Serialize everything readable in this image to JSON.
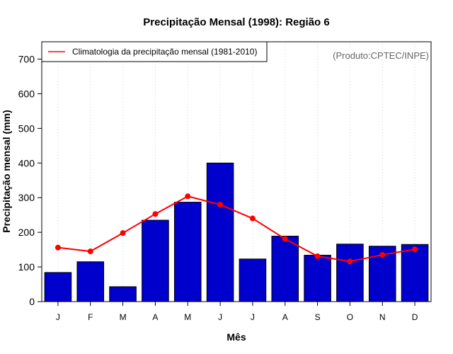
{
  "chart_data": {
    "type": "bar",
    "title": "Precipitação Mensal (1998): Região 6",
    "xlabel": "Mês",
    "ylabel": "Precipitação mensal (mm)",
    "ylim": [
      0,
      750
    ],
    "yticks": [
      0,
      100,
      200,
      300,
      400,
      500,
      600,
      700
    ],
    "categories": [
      "J",
      "F",
      "M",
      "A",
      "M",
      "J",
      "J",
      "A",
      "S",
      "O",
      "N",
      "D"
    ],
    "series": [
      {
        "name": "Precipitação mensal (1998)",
        "kind": "bar",
        "color": "#0000CD",
        "values": [
          84,
          115,
          43,
          235,
          287,
          400,
          123,
          189,
          134,
          166,
          160,
          165
        ]
      },
      {
        "name": "Climatologia da precipitação mensal (1981-2010)",
        "kind": "line",
        "color": "#FF0000",
        "values": [
          156,
          145,
          198,
          253,
          304,
          280,
          240,
          181,
          131,
          116,
          135,
          151
        ]
      }
    ],
    "grid": "vertical dotted",
    "legend": {
      "position": "top-left",
      "label": "Climatologia da precipitação mensal (1981-2010)"
    },
    "annotation": "(Produto:CPTEC/INPE)"
  }
}
